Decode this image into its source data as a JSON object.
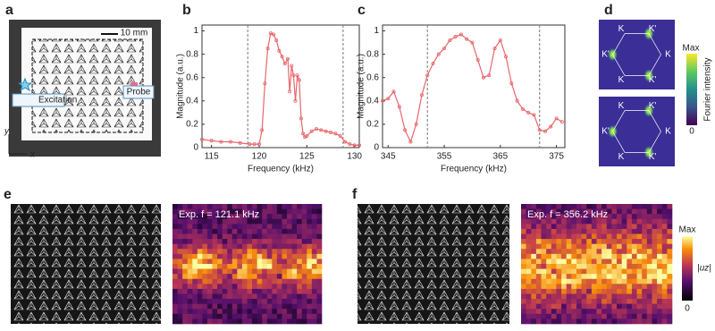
{
  "panels": [
    "a",
    "b",
    "c",
    "d",
    "e",
    "f"
  ],
  "photo": {
    "scale_bar": "10 mm",
    "excitation": "Excitation",
    "probe": "Probe",
    "axis_y": "y",
    "axis_x": "x"
  },
  "chart_data": [
    {
      "type": "line",
      "xlabel": "Frequency (kHz)",
      "ylabel": "Magnitude (a.u.)",
      "color": "#e8666a",
      "x": [
        114,
        115,
        116,
        117,
        118,
        119,
        119.5,
        120,
        120.3,
        120.6,
        120.9,
        121.2,
        121.5,
        121.8,
        122.1,
        122.4,
        122.7,
        123,
        123.2,
        123.4,
        123.6,
        123.8,
        124,
        124.2,
        124.4,
        124.6,
        124.8,
        125,
        125.5,
        126,
        126.5,
        127,
        127.5,
        128,
        128.5,
        129,
        129.5,
        130,
        130.5
      ],
      "values": [
        0.07,
        0.06,
        0.05,
        0.05,
        0.04,
        0.03,
        0.03,
        0.03,
        0.15,
        0.55,
        0.85,
        0.98,
        0.97,
        0.92,
        0.83,
        0.78,
        0.72,
        0.76,
        0.48,
        0.7,
        0.62,
        0.4,
        0.62,
        0.58,
        0.25,
        0.12,
        0.09,
        0.1,
        0.14,
        0.16,
        0.15,
        0.14,
        0.13,
        0.12,
        0.1,
        0.05,
        0.03,
        0.02,
        0.02
      ],
      "xlim": [
        114,
        130.5
      ],
      "ylim": [
        0,
        1.05
      ],
      "xticks": [
        115,
        120,
        125,
        130
      ],
      "yticks": [
        0,
        0.2,
        0.4,
        0.6,
        0.8,
        1
      ],
      "vlines": [
        118.8,
        128.8
      ]
    },
    {
      "type": "line",
      "xlabel": "Frequency (kHz)",
      "ylabel": "Magnitude (a.u.)",
      "color": "#e8666a",
      "x": [
        344,
        345,
        346,
        347,
        348,
        349,
        350,
        351,
        352,
        353,
        354,
        355,
        356,
        357,
        358,
        359,
        360,
        361,
        362,
        363,
        364,
        365,
        366,
        367,
        368,
        369,
        370,
        371,
        372,
        373,
        374,
        375,
        376
      ],
      "values": [
        0.4,
        0.42,
        0.48,
        0.35,
        0.15,
        0.05,
        0.2,
        0.45,
        0.62,
        0.72,
        0.8,
        0.85,
        0.92,
        0.95,
        0.97,
        0.93,
        0.9,
        0.75,
        0.6,
        0.62,
        0.85,
        0.92,
        0.78,
        0.55,
        0.4,
        0.33,
        0.3,
        0.28,
        0.15,
        0.14,
        0.18,
        0.25,
        0.22
      ],
      "xlim": [
        344,
        376.5
      ],
      "ylim": [
        0,
        1.05
      ],
      "xticks": [
        345,
        355,
        365,
        375
      ],
      "yticks": [
        0,
        0.2,
        0.4,
        0.6,
        0.8,
        1
      ],
      "vlines": [
        352,
        372
      ]
    }
  ],
  "fourier": {
    "images": [
      {
        "labels": [
          "K",
          "K'",
          "K",
          "K'",
          "K",
          "K'"
        ]
      },
      {
        "labels": [
          "K",
          "K'",
          "K",
          "K'",
          "K",
          "K'"
        ]
      }
    ],
    "colorbar": {
      "max": "Max",
      "min": "0",
      "label": "Fourier intensity"
    }
  },
  "fields": {
    "maps": [
      {
        "caption": "Exp. f = 121.1 kHz"
      },
      {
        "caption": "Exp. f = 356.2 kHz"
      }
    ],
    "colorbar": {
      "max": "Max",
      "min": "0",
      "label": "|uz|"
    }
  }
}
